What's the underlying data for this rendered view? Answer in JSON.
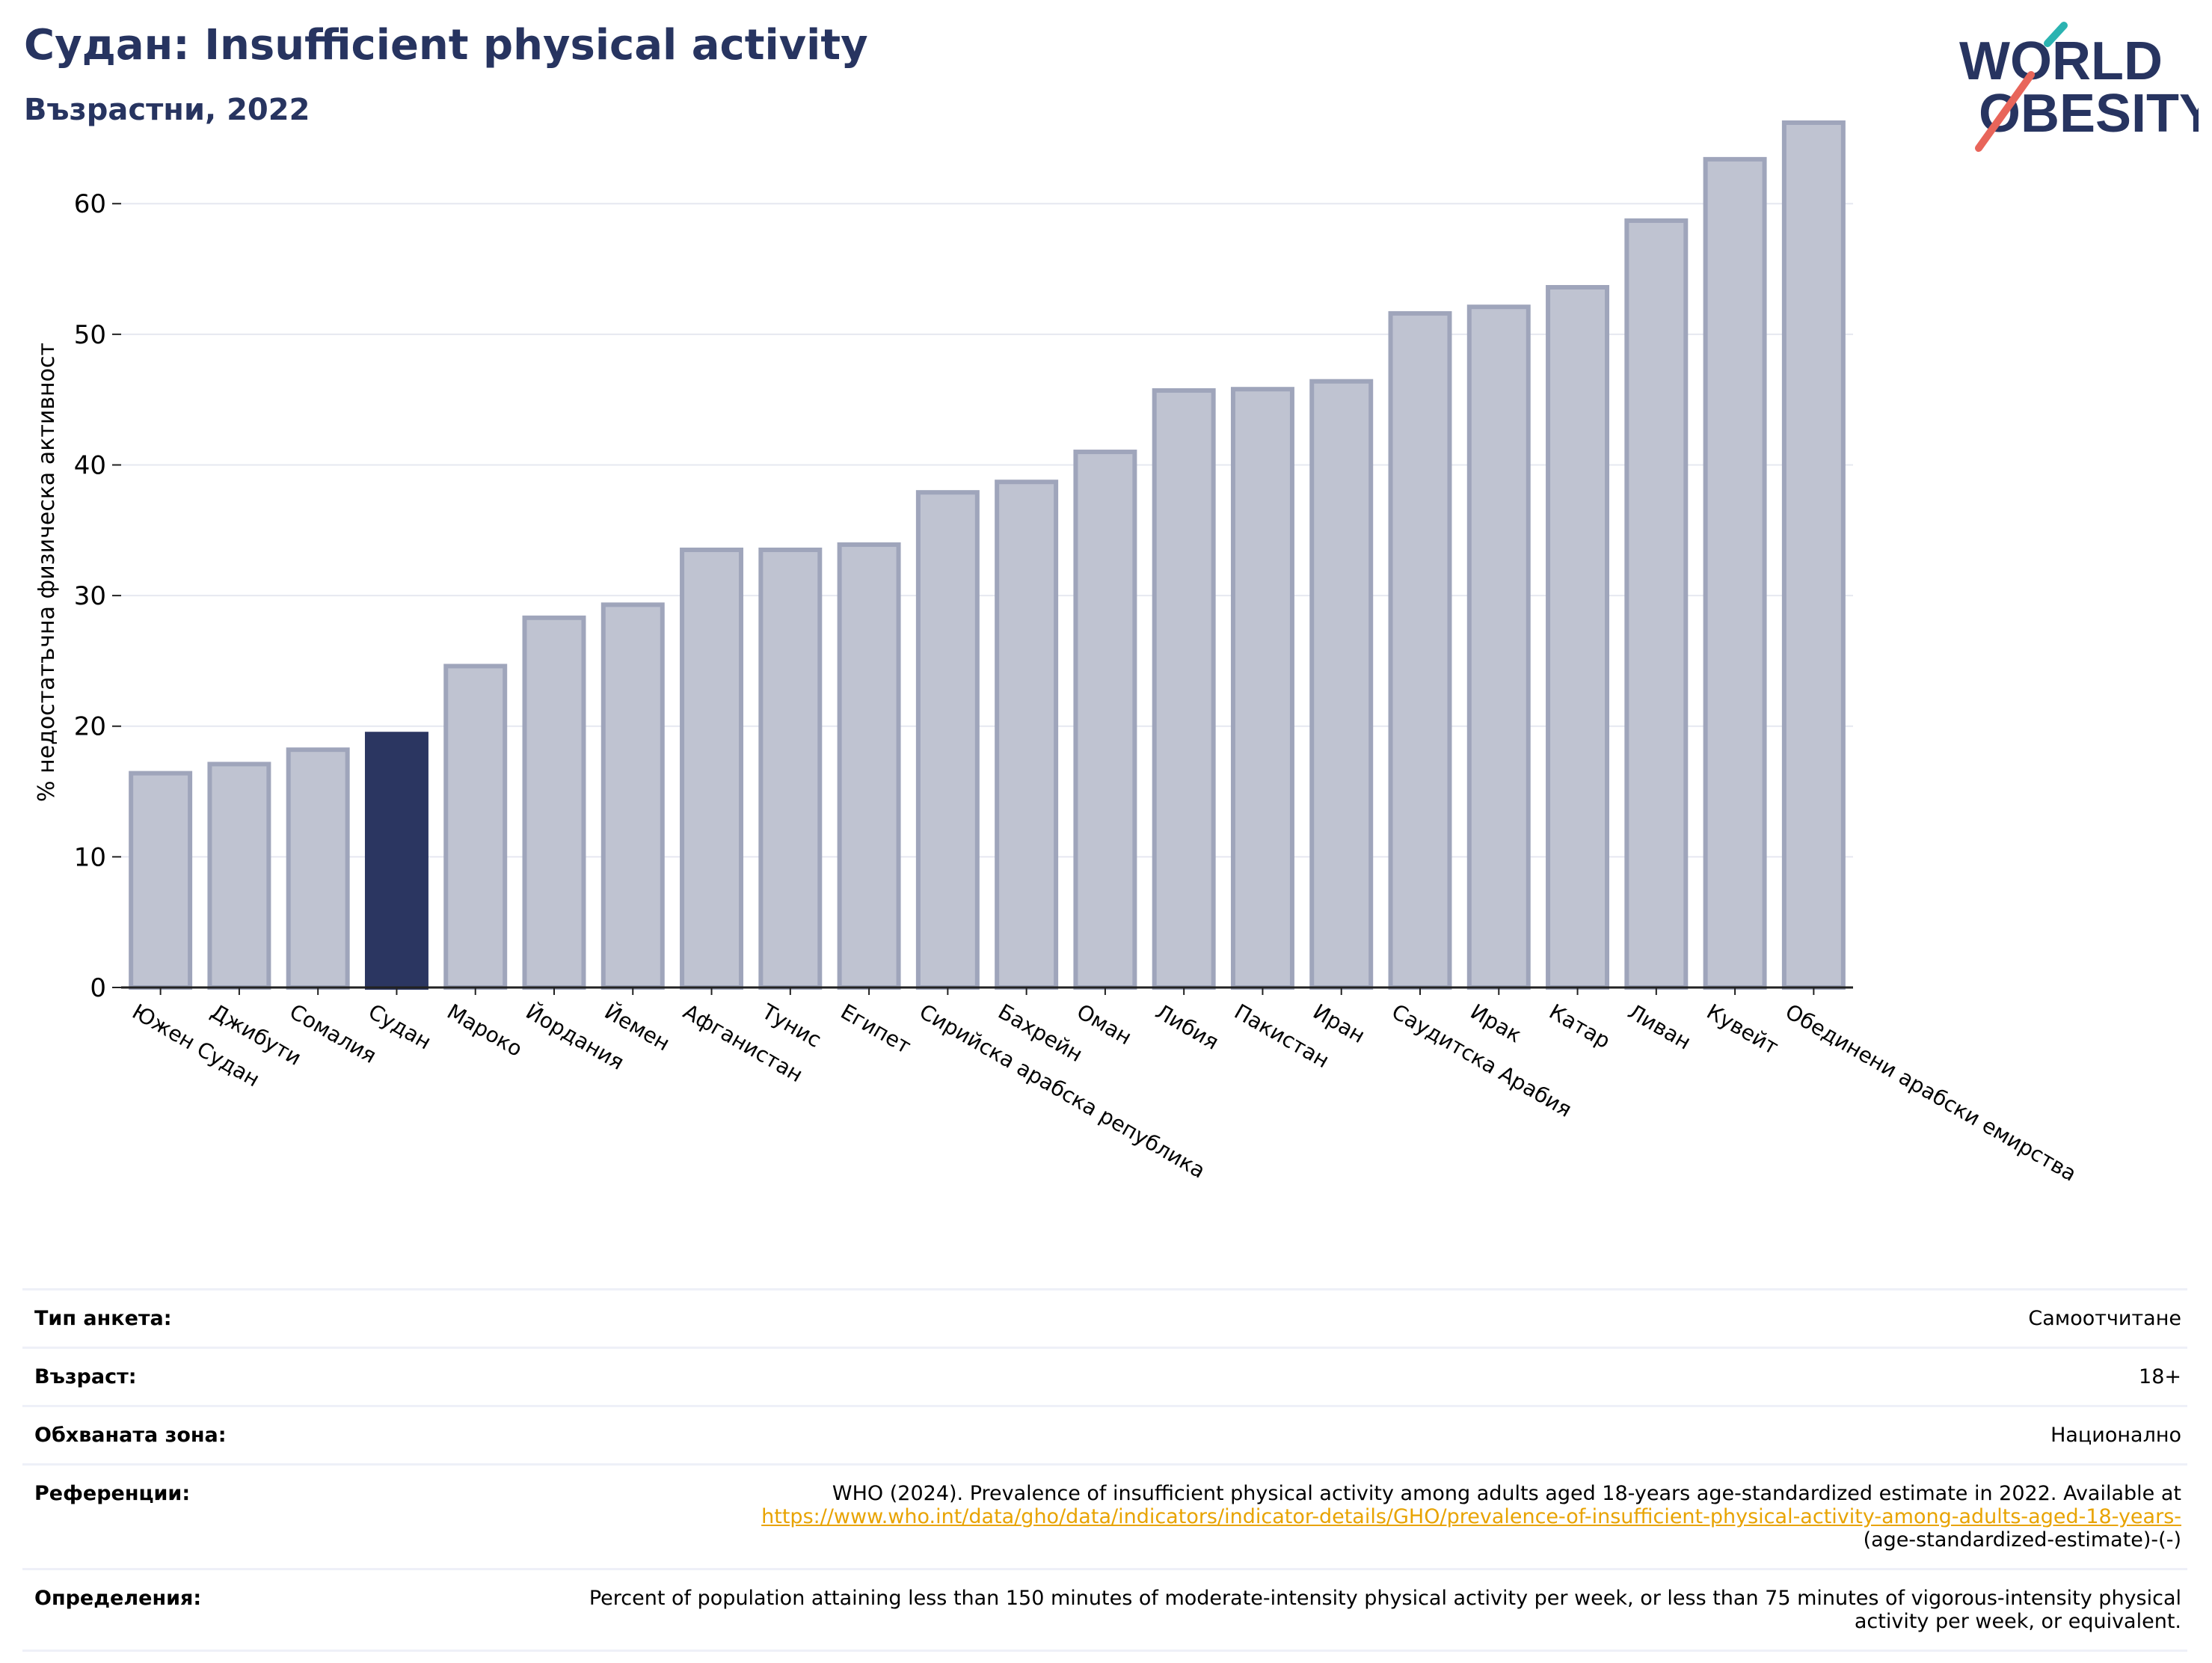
{
  "title": "Судан: Insufficient physical activity",
  "subtitle": "Възрастни, 2022",
  "logo": {
    "line1": "WORLD",
    "line2": "OBESITY"
  },
  "colors": {
    "highlight": "#2b3661",
    "bar": "#bfc3d1",
    "bar_edge": "#9fa5bb",
    "title": "#273460",
    "link": "#e8a300"
  },
  "chart_data": {
    "type": "bar",
    "ylabel": "% недостатъчна физическа активност",
    "ylim": [
      0,
      67
    ],
    "yticks": [
      0,
      10,
      20,
      30,
      40,
      50,
      60
    ],
    "grid": true,
    "highlight": "Судан",
    "categories": [
      "Южен Судан",
      "Джибути",
      "Сомалия",
      "Судан",
      "Мароко",
      "Йордания",
      "Йемен",
      "Афганистан",
      "Тунис",
      "Египет",
      "Сирийска арабска република",
      "Бахрейн",
      "Оман",
      "Либия",
      "Пакистан",
      "Иран",
      "Саудитска Арабия",
      "Ирак",
      "Катар",
      "Ливан",
      "Кувейт",
      "Обединени арабски емирства"
    ],
    "values": [
      16.4,
      17.1,
      18.2,
      19.4,
      24.6,
      28.3,
      29.3,
      33.5,
      33.5,
      33.9,
      37.9,
      38.7,
      41.0,
      45.7,
      45.8,
      46.4,
      51.6,
      52.1,
      53.6,
      58.7,
      63.4,
      66.2
    ]
  },
  "info": {
    "survey": {
      "label": "Тип анкета:",
      "value": "Самоотчитане"
    },
    "age": {
      "label": "Възраст:",
      "value": "18+"
    },
    "area": {
      "label": "Обхваната зона:",
      "value": "Национално"
    },
    "refs": {
      "label": "Референции:",
      "text": "WHO (2024). Prevalence of insufficient physical activity among adults aged 18-years age-standardized estimate in 2022. Available at",
      "link": "https://www.who.int/data/gho/data/indicators/indicator-details/GHO/prevalence-of-insufficient-physical-activity-among-adults-aged-18-years-",
      "link_tail": "(age-standardized-estimate)-(-)"
    },
    "defs": {
      "label": "Определения:",
      "value": "Percent of population attaining less than 150 minutes of moderate-intensity physical activity per week, or less than 75 minutes of vigorous-intensity physical activity per week, or equivalent."
    }
  }
}
